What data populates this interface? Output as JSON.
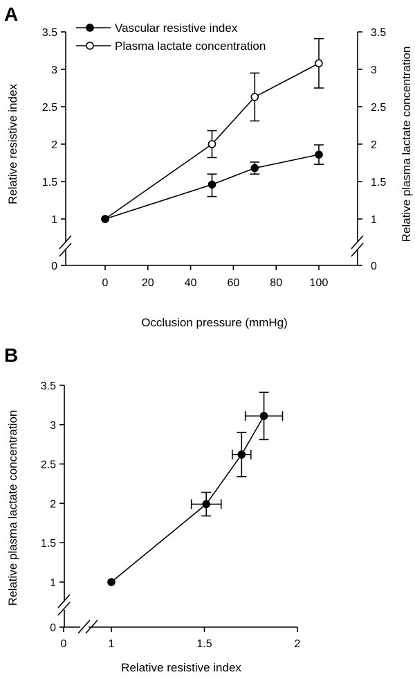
{
  "panel_a": {
    "label": "A",
    "ylabel_left": "Relative resistive index",
    "ylabel_right": "Relative plasma lactate concentration",
    "xlabel": "Occlusion pressure (mmHg)",
    "x_ticks": [
      "0",
      "20",
      "40",
      "60",
      "80",
      "100"
    ],
    "y_ticks": [
      "0",
      "1",
      "1.5",
      "2",
      "2.5",
      "3",
      "3.5"
    ],
    "legend": [
      "Vascular resistive index",
      "Plasma lactate concentration"
    ]
  },
  "panel_b": {
    "label": "B",
    "ylabel": "Relative plasma lactate concentration",
    "xlabel": "Relative resistive index",
    "x_ticks": [
      "0",
      "1",
      "1.5",
      "2"
    ],
    "y_ticks": [
      "0",
      "1",
      "1.5",
      "2",
      "2.5",
      "3",
      "3.5"
    ]
  },
  "chart_data": [
    {
      "type": "line",
      "x": [
        0,
        50,
        70,
        100
      ],
      "series": [
        {
          "name": "Vascular resistive index",
          "marker": "filled-circle",
          "axis": "left",
          "values": [
            1.0,
            1.46,
            1.68,
            1.86
          ],
          "err_low": [
            0,
            0.16,
            0.08,
            0.13
          ],
          "err_high": [
            0,
            0.14,
            0.08,
            0.13
          ]
        },
        {
          "name": "Plasma lactate concentration",
          "marker": "open-circle",
          "axis": "right",
          "values": [
            1.0,
            2.0,
            2.63,
            3.08
          ],
          "err_low": [
            0,
            0.18,
            0.32,
            0.33
          ],
          "err_high": [
            0,
            0.18,
            0.32,
            0.33
          ]
        }
      ],
      "xlim": [
        -15,
        120
      ],
      "ylim": [
        0,
        3.5
      ],
      "y_axis_break": true,
      "legend_position": "top-left"
    },
    {
      "type": "scatter",
      "points": [
        {
          "x": 1.0,
          "y": 1.0,
          "xerr": 0,
          "yerr": 0
        },
        {
          "x": 1.51,
          "y": 1.99,
          "xerr": 0.08,
          "yerr": 0.15
        },
        {
          "x": 1.7,
          "y": 2.62,
          "xerr": 0.05,
          "yerr": 0.28
        },
        {
          "x": 1.82,
          "y": 3.11,
          "xerr": 0.1,
          "yerr": 0.3
        }
      ],
      "connected": true,
      "xlim": [
        0,
        2
      ],
      "ylim": [
        0,
        3.5
      ],
      "x_axis_break": true,
      "y_axis_break": true
    }
  ]
}
